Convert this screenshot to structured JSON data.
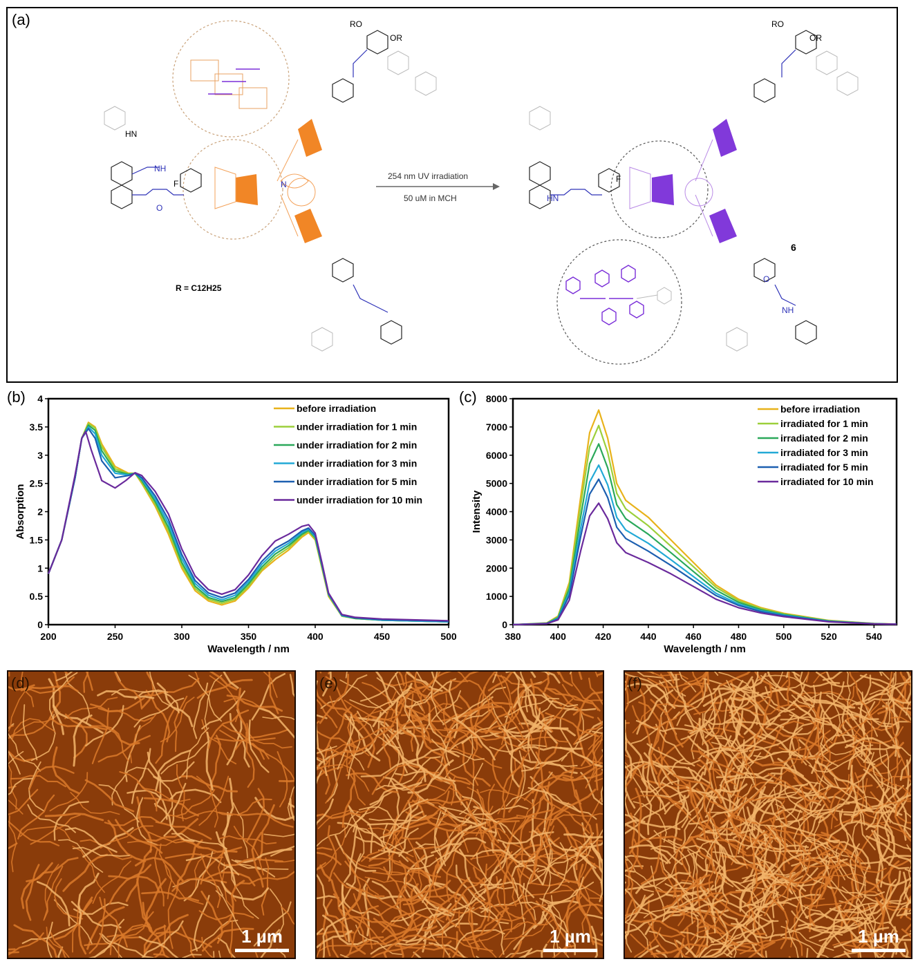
{
  "panel_a": {
    "label": "(a)",
    "arrow_top": "254 nm UV irradiation",
    "arrow_bottom": "50 uM in MCH",
    "r_definition": "R = C12H25",
    "compound_number": "6",
    "fragment_labels": [
      "RO",
      "OR",
      "HN",
      "NH",
      "F",
      "O",
      "N",
      "RO",
      "OR",
      "HN",
      "NH",
      "F",
      "O"
    ],
    "colors": {
      "orange": "#f07f1a",
      "purple": "#7a2ed8",
      "blue": "#2f33b8",
      "gray": "#9a9a9a"
    }
  },
  "chart_data": [
    {
      "type": "line",
      "panel": "(b)",
      "xlabel": "Wavelength / nm",
      "ylabel": "Absorption",
      "xlim": [
        200,
        500
      ],
      "ylim": [
        0,
        4
      ],
      "xticks": [
        "200",
        "250",
        "300",
        "350",
        "400",
        "450",
        "500"
      ],
      "yticks": [
        "0",
        "0.5",
        "1",
        "1.5",
        "2",
        "2.5",
        "3",
        "3.5",
        "4"
      ],
      "series": [
        {
          "name": "before irradiation",
          "color": "#e8b21a",
          "x": [
            200,
            210,
            220,
            225,
            230,
            235,
            240,
            250,
            260,
            265,
            270,
            280,
            290,
            300,
            310,
            320,
            330,
            340,
            350,
            360,
            370,
            380,
            390,
            395,
            400,
            405,
            410,
            420,
            430,
            450,
            500
          ],
          "y": [
            0.9,
            1.5,
            2.6,
            3.3,
            3.58,
            3.5,
            3.2,
            2.8,
            2.68,
            2.68,
            2.5,
            2.1,
            1.6,
            1.0,
            0.6,
            0.42,
            0.35,
            0.42,
            0.65,
            0.95,
            1.15,
            1.32,
            1.55,
            1.63,
            1.5,
            1.0,
            0.5,
            0.15,
            0.11,
            0.08,
            0.05
          ]
        },
        {
          "name": "under irradiation for 1 min",
          "color": "#9ccf3a",
          "x": [
            200,
            210,
            220,
            225,
            230,
            235,
            240,
            250,
            260,
            265,
            270,
            280,
            290,
            300,
            310,
            320,
            330,
            340,
            350,
            360,
            370,
            380,
            390,
            395,
            400,
            405,
            410,
            420,
            430,
            450,
            500
          ],
          "y": [
            0.9,
            1.5,
            2.6,
            3.3,
            3.56,
            3.48,
            3.15,
            2.76,
            2.67,
            2.68,
            2.52,
            2.14,
            1.66,
            1.05,
            0.64,
            0.45,
            0.38,
            0.45,
            0.68,
            0.98,
            1.2,
            1.36,
            1.58,
            1.65,
            1.52,
            1.02,
            0.52,
            0.15,
            0.11,
            0.08,
            0.05
          ]
        },
        {
          "name": "under irradiation for 2 min",
          "color": "#2aa85a",
          "x": [
            200,
            210,
            220,
            225,
            230,
            235,
            240,
            250,
            260,
            265,
            270,
            280,
            290,
            300,
            310,
            320,
            330,
            340,
            350,
            360,
            370,
            380,
            390,
            395,
            400,
            405,
            410,
            420,
            430,
            450,
            500
          ],
          "y": [
            0.9,
            1.5,
            2.6,
            3.3,
            3.53,
            3.44,
            3.08,
            2.72,
            2.66,
            2.68,
            2.55,
            2.18,
            1.72,
            1.1,
            0.68,
            0.48,
            0.41,
            0.48,
            0.72,
            1.02,
            1.25,
            1.4,
            1.6,
            1.67,
            1.54,
            1.04,
            0.53,
            0.16,
            0.11,
            0.08,
            0.05
          ]
        },
        {
          "name": "under irradiation for 3 min",
          "color": "#22a9d6",
          "x": [
            200,
            210,
            220,
            225,
            230,
            235,
            240,
            250,
            260,
            265,
            270,
            280,
            290,
            300,
            310,
            320,
            330,
            340,
            350,
            360,
            370,
            380,
            390,
            395,
            400,
            405,
            410,
            420,
            430,
            450,
            500
          ],
          "y": [
            0.9,
            1.5,
            2.6,
            3.3,
            3.5,
            3.38,
            3.0,
            2.68,
            2.65,
            2.68,
            2.58,
            2.23,
            1.79,
            1.17,
            0.73,
            0.52,
            0.44,
            0.52,
            0.76,
            1.07,
            1.3,
            1.44,
            1.63,
            1.69,
            1.56,
            1.06,
            0.54,
            0.16,
            0.12,
            0.08,
            0.05
          ]
        },
        {
          "name": "under irradiation for 5 min",
          "color": "#1c5fb0",
          "x": [
            200,
            210,
            220,
            225,
            230,
            235,
            240,
            250,
            260,
            265,
            270,
            280,
            290,
            300,
            310,
            320,
            330,
            340,
            350,
            360,
            370,
            380,
            390,
            395,
            400,
            405,
            410,
            420,
            430,
            450,
            500
          ],
          "y": [
            0.9,
            1.5,
            2.6,
            3.3,
            3.47,
            3.3,
            2.9,
            2.6,
            2.64,
            2.68,
            2.6,
            2.28,
            1.86,
            1.24,
            0.78,
            0.56,
            0.48,
            0.56,
            0.8,
            1.12,
            1.35,
            1.48,
            1.66,
            1.71,
            1.58,
            1.08,
            0.55,
            0.17,
            0.12,
            0.09,
            0.06
          ]
        },
        {
          "name": "under irradiation for 10 min",
          "color": "#6a2a9c",
          "x": [
            200,
            210,
            220,
            225,
            228,
            232,
            240,
            250,
            258,
            265,
            270,
            280,
            290,
            300,
            310,
            320,
            330,
            340,
            350,
            360,
            370,
            380,
            390,
            395,
            400,
            405,
            410,
            420,
            430,
            450,
            500
          ],
          "y": [
            0.9,
            1.5,
            2.65,
            3.3,
            3.42,
            3.1,
            2.55,
            2.42,
            2.55,
            2.69,
            2.64,
            2.36,
            1.96,
            1.34,
            0.86,
            0.62,
            0.54,
            0.62,
            0.88,
            1.22,
            1.48,
            1.6,
            1.74,
            1.77,
            1.62,
            1.1,
            0.56,
            0.18,
            0.13,
            0.1,
            0.07
          ]
        }
      ]
    },
    {
      "type": "line",
      "panel": "(c)",
      "xlabel": "Wavelength / nm",
      "ylabel": "Intensity",
      "xlim": [
        380,
        550
      ],
      "ylim": [
        0,
        8000
      ],
      "xticks": [
        "380",
        "400",
        "420",
        "440",
        "460",
        "480",
        "500",
        "520",
        "540"
      ],
      "yticks": [
        "0",
        "1000",
        "2000",
        "3000",
        "4000",
        "5000",
        "6000",
        "7000",
        "8000"
      ],
      "series": [
        {
          "name": "before irradiation",
          "color": "#e8b21a",
          "x": [
            380,
            395,
            400,
            405,
            410,
            414,
            418,
            422,
            426,
            430,
            440,
            450,
            460,
            470,
            480,
            490,
            500,
            520,
            540,
            550
          ],
          "y": [
            0,
            60,
            300,
            1500,
            4500,
            6800,
            7600,
            6600,
            5000,
            4400,
            3800,
            3000,
            2200,
            1400,
            900,
            600,
            400,
            150,
            40,
            20
          ]
        },
        {
          "name": "irradiated for 1 min",
          "color": "#9ccf3a",
          "x": [
            380,
            395,
            400,
            405,
            410,
            414,
            418,
            422,
            426,
            430,
            440,
            450,
            460,
            470,
            480,
            490,
            500,
            520,
            540,
            550
          ],
          "y": [
            0,
            55,
            280,
            1400,
            4200,
            6300,
            7050,
            6100,
            4650,
            4100,
            3500,
            2780,
            2050,
            1320,
            850,
            570,
            380,
            140,
            38,
            18
          ]
        },
        {
          "name": "irradiated for 2 min",
          "color": "#2aa85a",
          "x": [
            380,
            395,
            400,
            405,
            410,
            414,
            418,
            422,
            426,
            430,
            440,
            450,
            460,
            470,
            480,
            490,
            500,
            520,
            540,
            550
          ],
          "y": [
            0,
            50,
            250,
            1280,
            3800,
            5700,
            6400,
            5550,
            4250,
            3750,
            3200,
            2550,
            1880,
            1220,
            790,
            530,
            360,
            130,
            35,
            17
          ]
        },
        {
          "name": "irradiated for 3 min",
          "color": "#22a9d6",
          "x": [
            380,
            395,
            400,
            405,
            410,
            414,
            418,
            422,
            426,
            430,
            440,
            450,
            460,
            470,
            480,
            490,
            500,
            520,
            540,
            550
          ],
          "y": [
            0,
            45,
            225,
            1140,
            3400,
            5050,
            5650,
            4950,
            3800,
            3350,
            2880,
            2300,
            1700,
            1110,
            730,
            490,
            335,
            120,
            32,
            16
          ]
        },
        {
          "name": "irradiated for 5 min",
          "color": "#1c5fb0",
          "x": [
            380,
            395,
            400,
            405,
            410,
            414,
            418,
            422,
            426,
            430,
            440,
            450,
            460,
            470,
            480,
            490,
            500,
            520,
            540,
            550
          ],
          "y": [
            0,
            40,
            200,
            1040,
            3100,
            4620,
            5150,
            4500,
            3450,
            3050,
            2600,
            2100,
            1560,
            1030,
            680,
            460,
            315,
            110,
            30,
            15
          ]
        },
        {
          "name": "irradiated for 10 min",
          "color": "#6a2a9c",
          "x": [
            380,
            395,
            400,
            405,
            410,
            414,
            418,
            422,
            426,
            430,
            440,
            450,
            460,
            470,
            480,
            490,
            500,
            520,
            540,
            550
          ],
          "y": [
            0,
            35,
            170,
            870,
            2600,
            3850,
            4300,
            3750,
            2900,
            2550,
            2200,
            1800,
            1350,
            900,
            600,
            410,
            285,
            100,
            28,
            14
          ]
        }
      ]
    }
  ],
  "afm_panels": [
    {
      "label": "(d)",
      "scale": "1 µm"
    },
    {
      "label": "(e)",
      "scale": "1 µm"
    },
    {
      "label": "(f)",
      "scale": "1 µm"
    }
  ]
}
